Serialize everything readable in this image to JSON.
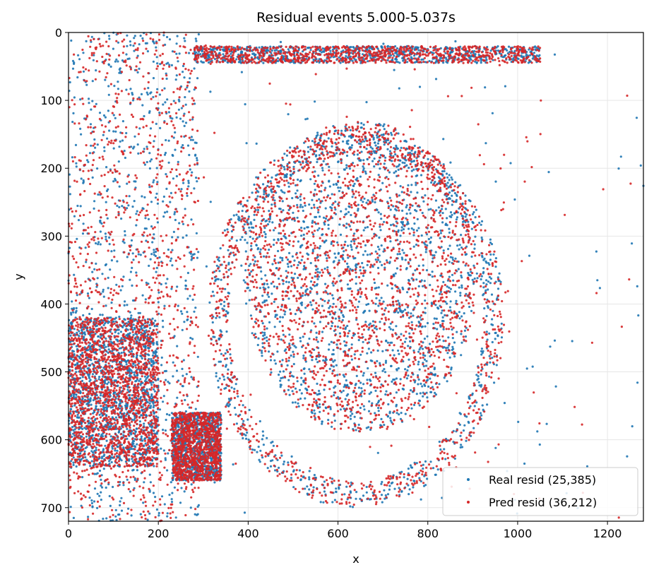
{
  "chart_data": {
    "type": "scatter",
    "title": "Residual events 5.000-5.037s",
    "xlabel": "x",
    "ylabel": "y",
    "xlim": [
      0,
      1280
    ],
    "ylim": [
      720,
      0
    ],
    "y_inverted": true,
    "grid": true,
    "x_ticks": [
      0,
      200,
      400,
      600,
      800,
      1000,
      1200
    ],
    "y_ticks": [
      0,
      100,
      200,
      300,
      400,
      500,
      600,
      700
    ],
    "legend_position": "lower right",
    "series": [
      {
        "name": "Real resid (25,385)",
        "color": "#1f77b4",
        "regions": [
          {
            "shape": "band",
            "x": [
              0,
              290
            ],
            "y": [
              0,
              720
            ],
            "density": 0.55
          },
          {
            "shape": "ellipse",
            "cx": 650,
            "cy": 360,
            "rx": 260,
            "ry": 230,
            "density": 0.9
          },
          {
            "shape": "rect",
            "x": [
              0,
              200
            ],
            "y": [
              420,
              640
            ],
            "density": 0.8
          },
          {
            "shape": "rect",
            "x": [
              230,
              340
            ],
            "y": [
              560,
              660
            ],
            "density": 0.6
          },
          {
            "shape": "ring",
            "cx": 640,
            "cy": 420,
            "rx": 330,
            "ry": 280,
            "density": 0.4
          },
          {
            "shape": "sparse",
            "x": [
              300,
              1280
            ],
            "y": [
              0,
              720
            ],
            "density": 0.12
          },
          {
            "shape": "band",
            "x": [
              280,
              1050
            ],
            "y": [
              20,
              45
            ],
            "density": 0.5
          }
        ]
      },
      {
        "name": "Pred resid (36,212)",
        "color": "#d62728",
        "regions": [
          {
            "shape": "band",
            "x": [
              0,
              290
            ],
            "y": [
              0,
              720
            ],
            "density": 0.6
          },
          {
            "shape": "ellipse",
            "cx": 650,
            "cy": 360,
            "rx": 260,
            "ry": 230,
            "density": 1.0
          },
          {
            "shape": "rect",
            "x": [
              0,
              200
            ],
            "y": [
              420,
              640
            ],
            "density": 0.9
          },
          {
            "shape": "rect",
            "x": [
              230,
              340
            ],
            "y": [
              560,
              660
            ],
            "density": 0.65
          },
          {
            "shape": "ring",
            "cx": 640,
            "cy": 420,
            "rx": 330,
            "ry": 280,
            "density": 0.45
          },
          {
            "shape": "sparse",
            "x": [
              300,
              1280
            ],
            "y": [
              0,
              720
            ],
            "density": 0.12
          },
          {
            "shape": "band",
            "x": [
              280,
              1050
            ],
            "y": [
              20,
              45
            ],
            "density": 0.55
          }
        ]
      }
    ]
  }
}
